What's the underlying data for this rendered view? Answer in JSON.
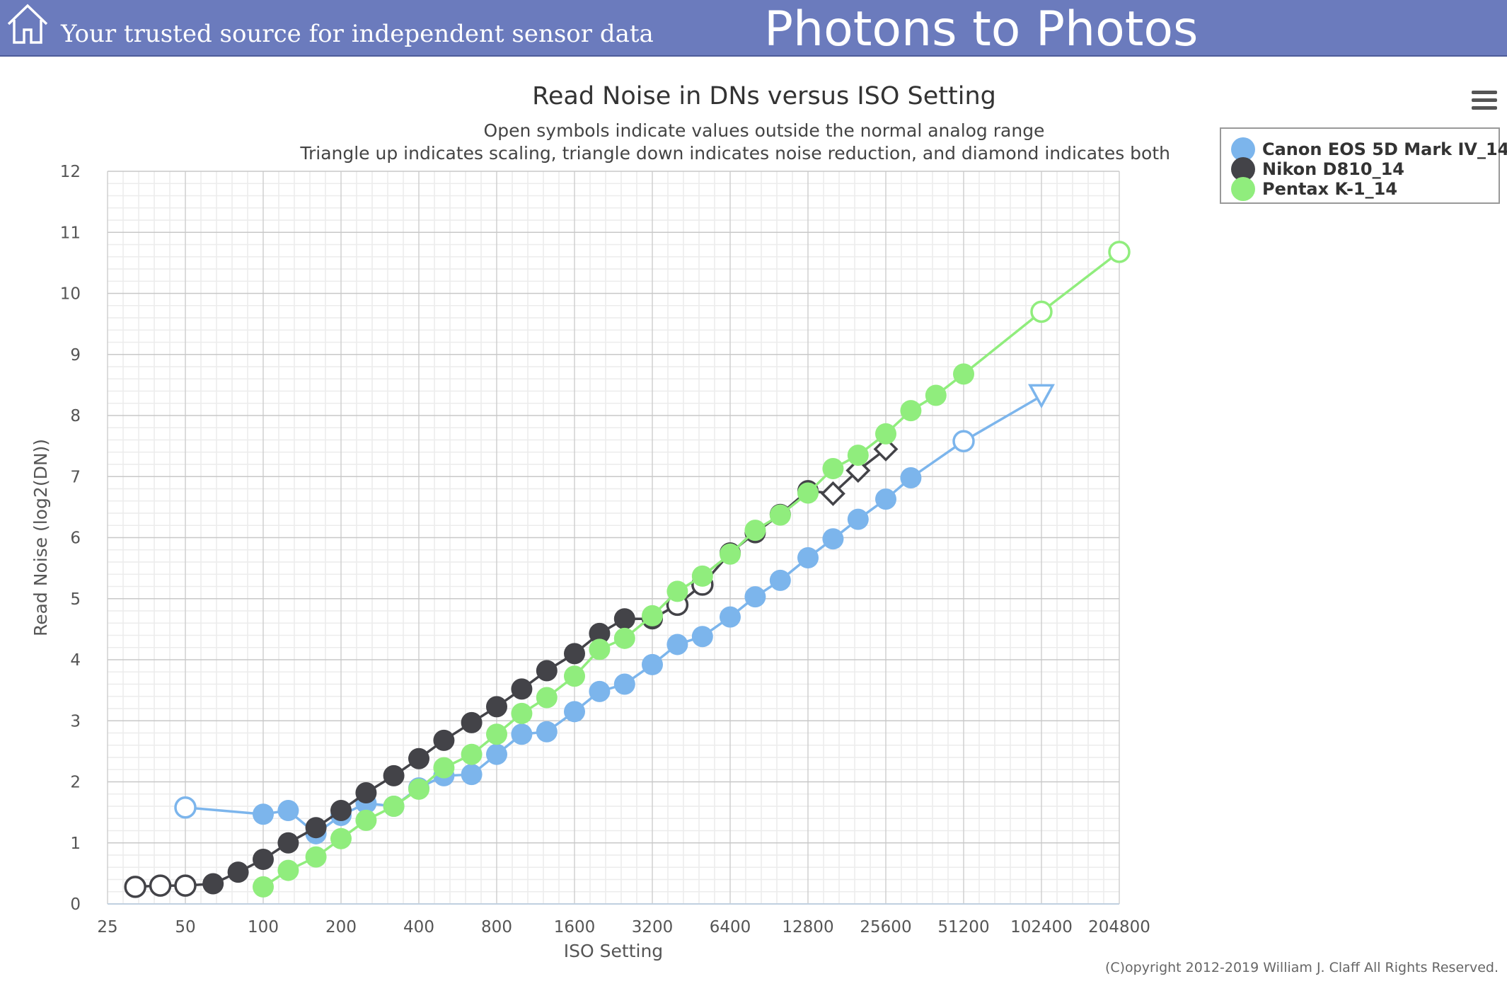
{
  "header": {
    "tagline": "Your trusted source for independent sensor data",
    "site_title": "Photons to Photos",
    "home_icon": "home-icon",
    "background": "#6b7bbd"
  },
  "menu": {
    "icon": "hamburger-menu-icon"
  },
  "copyright": "(C)opyright 2012-2019 William J. Claff All Rights Reserved.",
  "chart_data": {
    "type": "line",
    "title": "Read Noise in DNs versus ISO Setting",
    "subtitle_1": "Open symbols indicate values outside the normal analog range",
    "subtitle_2": "Triangle up indicates scaling, triangle down indicates noise reduction, and diamond indicates both",
    "xlabel": "ISO Setting",
    "ylabel": "Read Noise (log2(DN))",
    "x_scale": "log2",
    "x_ticks": [
      25,
      50,
      100,
      200,
      400,
      800,
      1600,
      3200,
      6400,
      12800,
      25600,
      51200,
      102400,
      204800
    ],
    "xlim": [
      25,
      204800
    ],
    "y_ticks": [
      0,
      1,
      2,
      3,
      4,
      5,
      6,
      7,
      8,
      9,
      10,
      11,
      12
    ],
    "ylim": [
      0,
      12
    ],
    "grid": true,
    "legend_position": "top-right",
    "series": [
      {
        "name": "Canon EOS 5D Mark IV_14",
        "color": "#7cb5ec",
        "points": [
          {
            "x": 50,
            "y": 1.58,
            "m": "open"
          },
          {
            "x": 100,
            "y": 1.47,
            "m": "dot"
          },
          {
            "x": 125,
            "y": 1.53,
            "m": "dot"
          },
          {
            "x": 160,
            "y": 1.15,
            "m": "dot"
          },
          {
            "x": 200,
            "y": 1.45,
            "m": "dot"
          },
          {
            "x": 250,
            "y": 1.65,
            "m": "dot"
          },
          {
            "x": 320,
            "y": 1.6,
            "m": "dot"
          },
          {
            "x": 400,
            "y": 1.9,
            "m": "dot"
          },
          {
            "x": 500,
            "y": 2.1,
            "m": "dot"
          },
          {
            "x": 640,
            "y": 2.12,
            "m": "dot"
          },
          {
            "x": 800,
            "y": 2.45,
            "m": "dot"
          },
          {
            "x": 1000,
            "y": 2.78,
            "m": "dot"
          },
          {
            "x": 1250,
            "y": 2.82,
            "m": "dot"
          },
          {
            "x": 1600,
            "y": 3.15,
            "m": "dot"
          },
          {
            "x": 2000,
            "y": 3.48,
            "m": "dot"
          },
          {
            "x": 2500,
            "y": 3.6,
            "m": "dot"
          },
          {
            "x": 3200,
            "y": 3.92,
            "m": "dot"
          },
          {
            "x": 4000,
            "y": 4.25,
            "m": "dot"
          },
          {
            "x": 5000,
            "y": 4.38,
            "m": "dot"
          },
          {
            "x": 6400,
            "y": 4.7,
            "m": "dot"
          },
          {
            "x": 8000,
            "y": 5.03,
            "m": "dot"
          },
          {
            "x": 10000,
            "y": 5.3,
            "m": "dot"
          },
          {
            "x": 12800,
            "y": 5.67,
            "m": "dot"
          },
          {
            "x": 16000,
            "y": 5.98,
            "m": "dot"
          },
          {
            "x": 20000,
            "y": 6.3,
            "m": "dot"
          },
          {
            "x": 25600,
            "y": 6.63,
            "m": "dot"
          },
          {
            "x": 32000,
            "y": 6.98,
            "m": "dot"
          },
          {
            "x": 51200,
            "y": 7.58,
            "m": "open"
          },
          {
            "x": 102400,
            "y": 8.32,
            "m": "triangle-down"
          }
        ]
      },
      {
        "name": "Nikon D810_14",
        "color": "#434348",
        "points": [
          {
            "x": 32,
            "y": 0.28,
            "m": "open"
          },
          {
            "x": 40,
            "y": 0.3,
            "m": "open"
          },
          {
            "x": 50,
            "y": 0.3,
            "m": "open"
          },
          {
            "x": 64,
            "y": 0.33,
            "m": "dot"
          },
          {
            "x": 80,
            "y": 0.52,
            "m": "dot"
          },
          {
            "x": 100,
            "y": 0.73,
            "m": "dot"
          },
          {
            "x": 125,
            "y": 1.0,
            "m": "dot"
          },
          {
            "x": 160,
            "y": 1.25,
            "m": "dot"
          },
          {
            "x": 200,
            "y": 1.53,
            "m": "dot"
          },
          {
            "x": 250,
            "y": 1.82,
            "m": "dot"
          },
          {
            "x": 320,
            "y": 2.1,
            "m": "dot"
          },
          {
            "x": 400,
            "y": 2.38,
            "m": "dot"
          },
          {
            "x": 500,
            "y": 2.68,
            "m": "dot"
          },
          {
            "x": 640,
            "y": 2.97,
            "m": "dot"
          },
          {
            "x": 800,
            "y": 3.23,
            "m": "dot"
          },
          {
            "x": 1000,
            "y": 3.52,
            "m": "dot"
          },
          {
            "x": 1250,
            "y": 3.82,
            "m": "dot"
          },
          {
            "x": 1600,
            "y": 4.1,
            "m": "dot"
          },
          {
            "x": 2000,
            "y": 4.43,
            "m": "dot"
          },
          {
            "x": 2500,
            "y": 4.67,
            "m": "dot"
          },
          {
            "x": 3200,
            "y": 4.67,
            "m": "dot"
          },
          {
            "x": 4000,
            "y": 4.9,
            "m": "open"
          },
          {
            "x": 5000,
            "y": 5.23,
            "m": "open"
          },
          {
            "x": 6400,
            "y": 5.75,
            "m": "dot"
          },
          {
            "x": 8000,
            "y": 6.08,
            "m": "dot"
          },
          {
            "x": 10000,
            "y": 6.38,
            "m": "dot"
          },
          {
            "x": 12800,
            "y": 6.77,
            "m": "dot"
          },
          {
            "x": 16000,
            "y": 6.72,
            "m": "diamond"
          },
          {
            "x": 20000,
            "y": 7.1,
            "m": "diamond"
          },
          {
            "x": 25600,
            "y": 7.45,
            "m": "diamond"
          }
        ]
      },
      {
        "name": "Pentax K-1_14",
        "color": "#90ed7d",
        "points": [
          {
            "x": 100,
            "y": 0.28,
            "m": "dot"
          },
          {
            "x": 125,
            "y": 0.55,
            "m": "dot"
          },
          {
            "x": 160,
            "y": 0.77,
            "m": "dot"
          },
          {
            "x": 200,
            "y": 1.07,
            "m": "dot"
          },
          {
            "x": 250,
            "y": 1.37,
            "m": "dot"
          },
          {
            "x": 320,
            "y": 1.6,
            "m": "dot"
          },
          {
            "x": 400,
            "y": 1.88,
            "m": "dot"
          },
          {
            "x": 500,
            "y": 2.23,
            "m": "dot"
          },
          {
            "x": 640,
            "y": 2.45,
            "m": "dot"
          },
          {
            "x": 800,
            "y": 2.78,
            "m": "dot"
          },
          {
            "x": 1000,
            "y": 3.12,
            "m": "dot"
          },
          {
            "x": 1250,
            "y": 3.38,
            "m": "dot"
          },
          {
            "x": 1600,
            "y": 3.73,
            "m": "dot"
          },
          {
            "x": 2000,
            "y": 4.17,
            "m": "dot"
          },
          {
            "x": 2500,
            "y": 4.35,
            "m": "dot"
          },
          {
            "x": 3200,
            "y": 4.72,
            "m": "dot"
          },
          {
            "x": 4000,
            "y": 5.12,
            "m": "dot"
          },
          {
            "x": 5000,
            "y": 5.37,
            "m": "dot"
          },
          {
            "x": 6400,
            "y": 5.73,
            "m": "dot"
          },
          {
            "x": 8000,
            "y": 6.12,
            "m": "dot"
          },
          {
            "x": 10000,
            "y": 6.37,
            "m": "dot"
          },
          {
            "x": 12800,
            "y": 6.73,
            "m": "dot"
          },
          {
            "x": 16000,
            "y": 7.13,
            "m": "dot"
          },
          {
            "x": 20000,
            "y": 7.35,
            "m": "dot"
          },
          {
            "x": 25600,
            "y": 7.7,
            "m": "dot"
          },
          {
            "x": 32000,
            "y": 8.08,
            "m": "dot"
          },
          {
            "x": 40000,
            "y": 8.33,
            "m": "dot"
          },
          {
            "x": 51200,
            "y": 8.68,
            "m": "dot"
          },
          {
            "x": 102400,
            "y": 9.7,
            "m": "open"
          },
          {
            "x": 204800,
            "y": 10.68,
            "m": "open"
          }
        ]
      }
    ]
  }
}
